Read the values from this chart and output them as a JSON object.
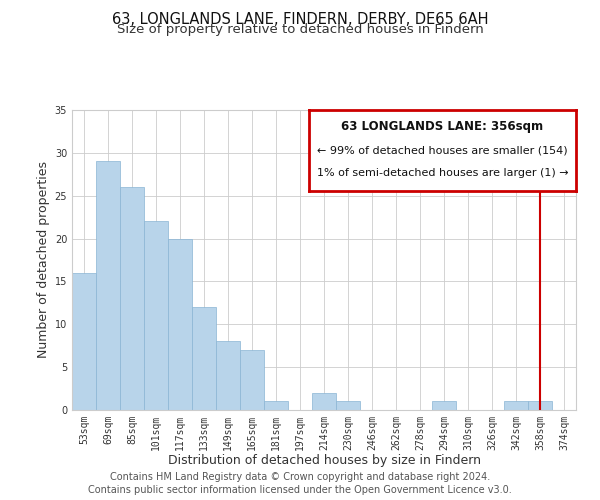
{
  "title": "63, LONGLANDS LANE, FINDERN, DERBY, DE65 6AH",
  "subtitle": "Size of property relative to detached houses in Findern",
  "xlabel": "Distribution of detached houses by size in Findern",
  "ylabel": "Number of detached properties",
  "bar_color": "#b8d4ea",
  "bar_edge_color": "#8ab4d4",
  "categories": [
    "53sqm",
    "69sqm",
    "85sqm",
    "101sqm",
    "117sqm",
    "133sqm",
    "149sqm",
    "165sqm",
    "181sqm",
    "197sqm",
    "214sqm",
    "230sqm",
    "246sqm",
    "262sqm",
    "278sqm",
    "294sqm",
    "310sqm",
    "326sqm",
    "342sqm",
    "358sqm",
    "374sqm"
  ],
  "values": [
    16,
    29,
    26,
    22,
    20,
    12,
    8,
    7,
    1,
    0,
    2,
    1,
    0,
    0,
    0,
    1,
    0,
    0,
    1,
    1,
    0
  ],
  "ylim": [
    0,
    35
  ],
  "yticks": [
    0,
    5,
    10,
    15,
    20,
    25,
    30,
    35
  ],
  "property_line_index": 19,
  "property_line_color": "#cc0000",
  "legend_title": "63 LONGLANDS LANE: 356sqm",
  "legend_line1": "← 99% of detached houses are smaller (154)",
  "legend_line2": "1% of semi-detached houses are larger (1) →",
  "legend_box_color": "#cc0000",
  "footer_line1": "Contains HM Land Registry data © Crown copyright and database right 2024.",
  "footer_line2": "Contains public sector information licensed under the Open Government Licence v3.0.",
  "title_fontsize": 10.5,
  "subtitle_fontsize": 9.5,
  "axis_label_fontsize": 9,
  "tick_fontsize": 7,
  "legend_fontsize_title": 8.5,
  "legend_fontsize_body": 8,
  "footer_fontsize": 7
}
